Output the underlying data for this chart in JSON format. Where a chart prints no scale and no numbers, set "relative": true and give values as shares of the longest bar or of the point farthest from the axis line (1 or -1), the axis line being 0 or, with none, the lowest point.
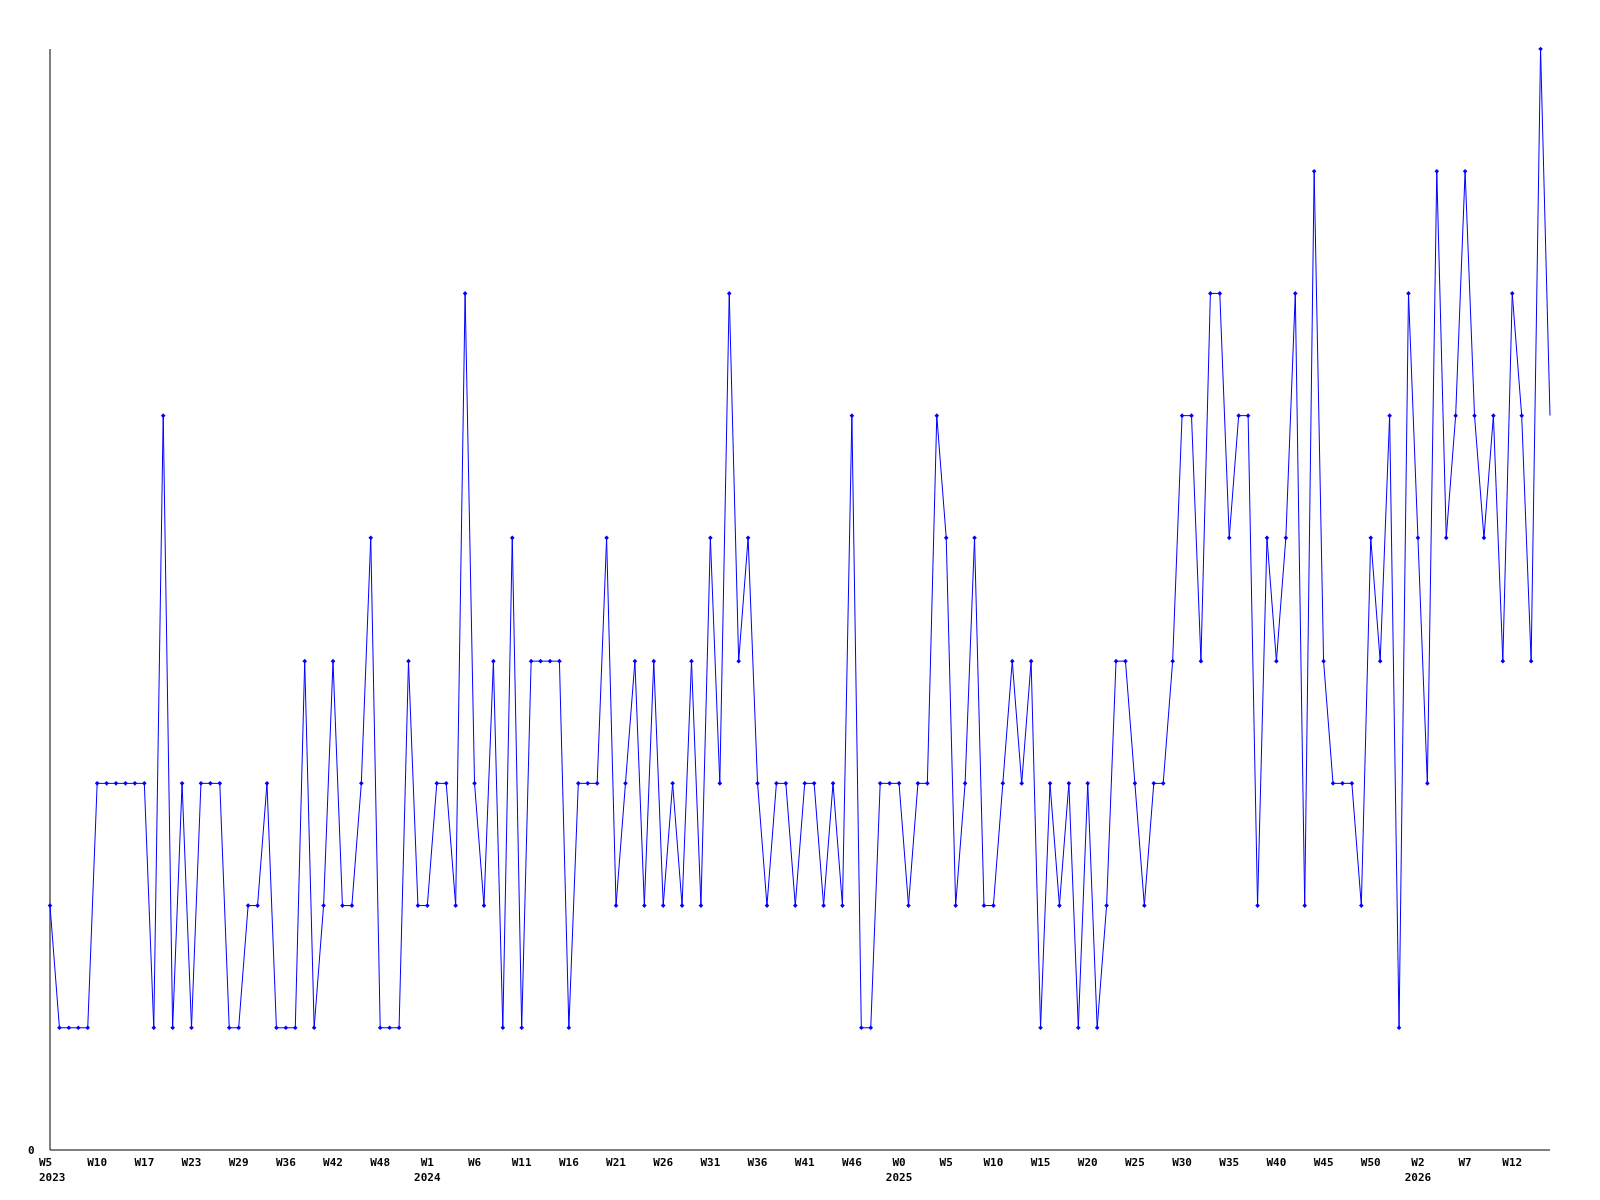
{
  "chart_data": {
    "type": "line",
    "relative": true,
    "categories": [
      "W5\n2023",
      null,
      null,
      null,
      null,
      "W10",
      null,
      null,
      null,
      null,
      "W17",
      null,
      null,
      null,
      null,
      "W23",
      null,
      null,
      null,
      null,
      "W29",
      null,
      null,
      null,
      null,
      "W36",
      null,
      null,
      null,
      null,
      "W42",
      null,
      null,
      null,
      null,
      "W48",
      null,
      null,
      null,
      null,
      "W1\n2024",
      null,
      null,
      null,
      null,
      "W6",
      null,
      null,
      null,
      null,
      "W11",
      null,
      null,
      null,
      null,
      "W16",
      null,
      null,
      null,
      null,
      "W21",
      null,
      null,
      null,
      null,
      "W26",
      null,
      null,
      null,
      null,
      "W31",
      null,
      null,
      null,
      null,
      "W36",
      null,
      null,
      null,
      null,
      "W41",
      null,
      null,
      null,
      null,
      "W46",
      null,
      null,
      null,
      null,
      "W0\n2025",
      null,
      null,
      null,
      null,
      "W5",
      null,
      null,
      null,
      null,
      "W10",
      null,
      null,
      null,
      null,
      "W15",
      null,
      null,
      null,
      null,
      "W20",
      null,
      null,
      null,
      null,
      "W25",
      null,
      null,
      null,
      null,
      "W30",
      null,
      null,
      null,
      null,
      "W35",
      null,
      null,
      null,
      null,
      "W40",
      null,
      null,
      null,
      null,
      "W45",
      null,
      null,
      null,
      null,
      "W50",
      null,
      null,
      null,
      null,
      "W2\n2026",
      null,
      null,
      null,
      null,
      "W7",
      null,
      null,
      null,
      null,
      "W12",
      null,
      null,
      null,
      null
    ],
    "series": [
      {
        "color": "#0000ff",
        "values": [
          0.222,
          0.111,
          0.111,
          0.111,
          0.111,
          0.333,
          0.333,
          0.333,
          0.333,
          0.333,
          0.333,
          0.111,
          0.667,
          0.111,
          0.333,
          0.111,
          0.333,
          0.333,
          0.333,
          0.111,
          0.111,
          0.222,
          0.222,
          0.333,
          0.111,
          0.111,
          0.111,
          0.444,
          0.111,
          0.222,
          0.444,
          0.222,
          0.222,
          0.333,
          0.556,
          0.111,
          0.111,
          0.111,
          0.444,
          0.222,
          0.222,
          0.333,
          0.333,
          0.222,
          0.778,
          0.333,
          0.222,
          0.444,
          0.111,
          0.556,
          0.111,
          0.444,
          0.444,
          0.444,
          0.444,
          0.111,
          0.333,
          0.333,
          0.333,
          0.556,
          0.222,
          0.333,
          0.444,
          0.222,
          0.444,
          0.222,
          0.333,
          0.222,
          0.444,
          0.222,
          0.556,
          0.333,
          0.778,
          0.444,
          0.556,
          0.333,
          0.222,
          0.333,
          0.333,
          0.222,
          0.333,
          0.333,
          0.222,
          0.333,
          0.222,
          0.667,
          0.111,
          0.111,
          0.333,
          0.333,
          0.333,
          0.222,
          0.333,
          0.333,
          0.667,
          0.556,
          0.222,
          0.333,
          0.556,
          0.222,
          0.222,
          0.333,
          0.444,
          0.333,
          0.444,
          0.111,
          0.333,
          0.222,
          0.333,
          0.111,
          0.333,
          0.111,
          0.222,
          0.444,
          0.444,
          0.333,
          0.222,
          0.333,
          0.333,
          0.444,
          0.667,
          0.667,
          0.444,
          0.778,
          0.778,
          0.556,
          0.667,
          0.667,
          0.222,
          0.556,
          0.444,
          0.556,
          0.778,
          0.222,
          0.889,
          0.444,
          0.333,
          0.333,
          0.333,
          0.222,
          0.556,
          0.444,
          0.667,
          0.111,
          0.778,
          0.556,
          0.333,
          0.889,
          0.556,
          0.667,
          0.889,
          0.667,
          0.556,
          0.667,
          0.444,
          0.778,
          0.667,
          0.444,
          1,
          0.667
        ]
      }
    ],
    "marker": "diamond",
    "line_style": "solid",
    "grid": false,
    "annotations": [
      "0"
    ]
  }
}
